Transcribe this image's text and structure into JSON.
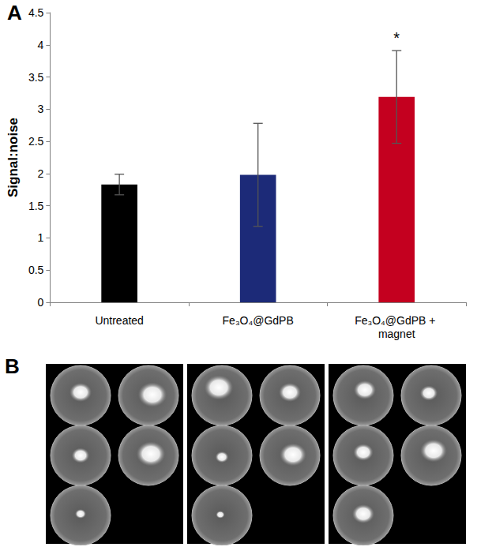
{
  "chart_data": {
    "type": "bar",
    "title": "A",
    "categories": [
      "Untreated",
      "Fe₃O₄@GdPB",
      "Fe₃O₄@GdPB + magnet"
    ],
    "values": [
      1.83,
      1.98,
      3.19
    ],
    "errors": [
      0.16,
      0.8,
      0.72
    ],
    "colors": [
      "#000000",
      "#1c2a78",
      "#c4001f"
    ],
    "y_label": "Signal:noise",
    "ylim": [
      0,
      4.5
    ],
    "yticks": [
      0,
      0.5,
      1,
      1.5,
      2,
      2.5,
      3,
      3.5,
      4,
      4.5
    ],
    "grid": false,
    "annotations": [
      {
        "text": "*",
        "category": "Fe₃O₄@GdPB + magnet"
      }
    ]
  },
  "image_panel": {
    "label": "B"
  }
}
